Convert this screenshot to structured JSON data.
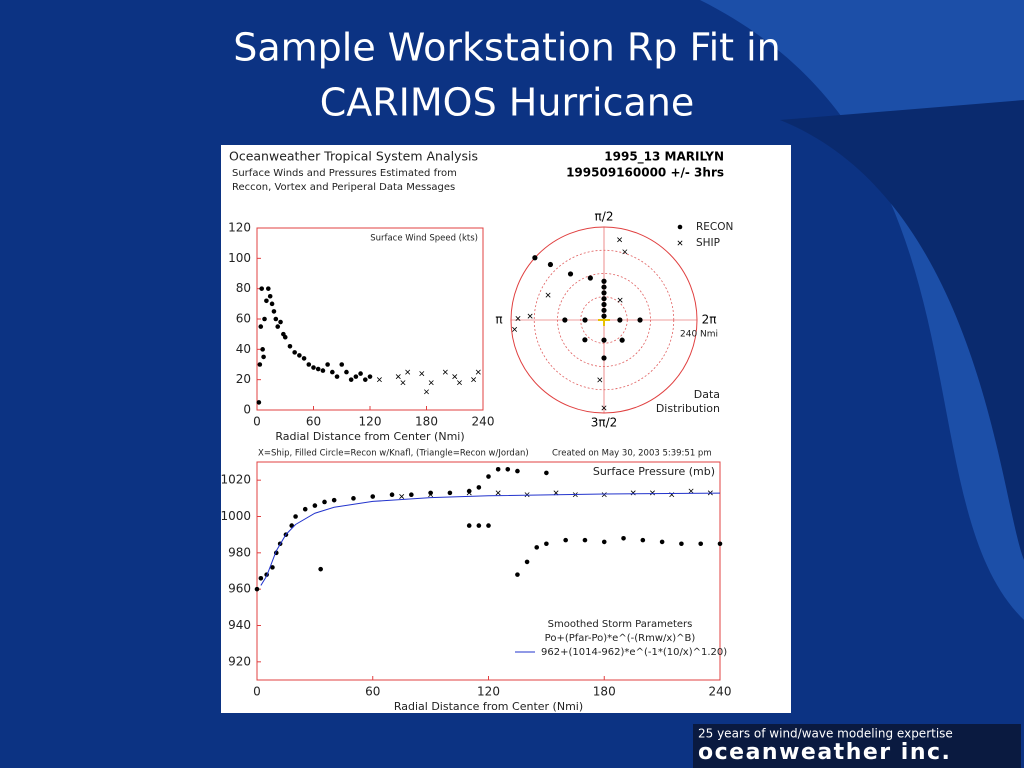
{
  "slide": {
    "title_lines": [
      "Sample Workstation Rp Fit in",
      "CARIMOS Hurricane"
    ],
    "footer": {
      "tagline": "25 years of wind/wave modeling expertise",
      "logo": "oceanweather inc."
    }
  },
  "panel": {
    "header": "Oceanweather Tropical System Analysis",
    "subheader_lines": [
      "Surface Winds and Pressures Estimated from",
      "Reccon, Vortex and Periperal Data Messages"
    ],
    "storm": "1995_13 MARILYN",
    "time": "199509160000 +/- 3hrs",
    "caption": "X=Ship, Filled Circle=Recon w/Knafl, (Triangle=Recon w/Jordan)",
    "created": "Created on May 30, 2003   5:39:51 pm"
  },
  "chart_data": [
    {
      "type": "scatter",
      "title": "Surface Wind Speed (kts)",
      "x_label": "Radial Distance from Center (Nmi)",
      "xlim": [
        0,
        240
      ],
      "xticks": [
        0,
        60,
        120,
        180,
        240
      ],
      "ylim": [
        0,
        120
      ],
      "yticks": [
        0,
        20,
        40,
        60,
        80,
        100,
        120
      ],
      "series": [
        {
          "color": "#000000",
          "marker": "dot",
          "x": [
            2,
            3,
            4,
            5,
            6,
            7,
            8,
            10,
            12,
            14,
            16,
            18,
            20,
            22,
            25,
            28,
            30,
            35,
            40,
            45,
            50,
            55,
            60,
            65,
            70,
            75,
            80,
            85,
            90,
            95,
            100,
            105,
            110,
            115,
            120
          ],
          "values": [
            5,
            30,
            55,
            80,
            40,
            35,
            60,
            72,
            80,
            75,
            70,
            65,
            60,
            55,
            58,
            50,
            48,
            42,
            38,
            36,
            34,
            30,
            28,
            27,
            26,
            30,
            25,
            22,
            30,
            25,
            20,
            22,
            24,
            20,
            22
          ]
        },
        {
          "color": "#000000",
          "marker": "x",
          "x": [
            130,
            150,
            155,
            160,
            175,
            180,
            185,
            200,
            210,
            215,
            230,
            235
          ],
          "values": [
            20,
            22,
            18,
            25,
            24,
            12,
            18,
            25,
            22,
            18,
            20,
            25
          ]
        }
      ]
    },
    {
      "type": "polar",
      "legend": "top-right",
      "rlim": [
        0,
        240
      ],
      "rticks": [
        {
          "value": 240,
          "label": "240 Nmi"
        }
      ],
      "thetaticks": [
        {
          "value": 90,
          "label": "π/2"
        },
        {
          "value": 180,
          "label": "π"
        },
        {
          "value": 360,
          "label": "2π"
        },
        {
          "value": 270,
          "label": "3π/2"
        }
      ],
      "annotation_lines": [
        "Data",
        "Distribution"
      ],
      "series": [
        {
          "name": "RECON",
          "color": "#000000",
          "marker": "dot",
          "theta": [
            90,
            90,
            90,
            90,
            90,
            90,
            90,
            108,
            126,
            134,
            138,
            180,
            180,
            270,
            270,
            226,
            360,
            360,
            312
          ],
          "values": [
            10,
            25,
            40,
            55,
            70,
            85,
            100,
            114,
            147,
            199,
            240,
            49,
            101,
            52,
            98,
            71,
            41,
            93,
            70
          ]
        },
        {
          "name": "SHIP",
          "color": "#000000",
          "marker": "x",
          "theta": [
            79,
            73,
            270,
            266,
            156,
            179,
            177,
            51,
            186
          ],
          "values": [
            211,
            184,
            227,
            155,
            158,
            222,
            191,
            66,
            232
          ]
        }
      ]
    },
    {
      "type": "scatter",
      "title": "Surface Pressure (mb)",
      "x_label": "Radial Distance from Center (Nmi)",
      "xlim": [
        0,
        240
      ],
      "xticks": [
        0,
        60,
        120,
        180,
        240
      ],
      "ylim": [
        910,
        1030
      ],
      "yticks": [
        920,
        940,
        960,
        980,
        1000,
        1020
      ],
      "annotation_lines": [
        "Smoothed Storm Parameters",
        "Po+(Pfar-Po)*e^(-(Rmw/x)^B)"
      ],
      "series": [
        {
          "color": "#000000",
          "marker": "dot",
          "x": [
            0,
            2,
            5,
            8,
            10,
            12,
            15,
            18,
            20,
            25,
            30,
            33,
            35,
            40,
            50,
            60,
            70,
            80,
            90,
            100,
            110,
            115,
            120,
            125,
            130,
            135,
            150,
            110,
            115,
            120,
            135,
            140,
            145,
            150,
            160,
            170,
            180,
            190,
            200,
            210,
            220,
            230,
            240
          ],
          "values": [
            960,
            966,
            968,
            972,
            980,
            985,
            990,
            995,
            1000,
            1004,
            1006,
            971,
            1008,
            1009,
            1010,
            1011,
            1012,
            1012,
            1013,
            1013,
            1014,
            1016,
            1022,
            1026,
            1026,
            1025,
            1024,
            995,
            995,
            995,
            968,
            975,
            983,
            985,
            987,
            987,
            986,
            988,
            987,
            986,
            985,
            985,
            985
          ]
        },
        {
          "color": "#000000",
          "marker": "x",
          "x": [
            75,
            90,
            110,
            125,
            140,
            155,
            165,
            180,
            195,
            205,
            215,
            225,
            235
          ],
          "values": [
            1011,
            1012,
            1013,
            1013,
            1012,
            1013,
            1012,
            1012,
            1013,
            1013,
            1012,
            1014,
            1013
          ]
        },
        {
          "name": "962+(1014-962)*e^(-1*(10/x)^1.20)",
          "color": "#2233cc",
          "marker": "line",
          "x": [
            2,
            5,
            10,
            15,
            20,
            30,
            40,
            60,
            90,
            120,
            180,
            240
          ],
          "values": [
            962.05,
            967.2,
            981.1,
            990.1,
            995.6,
            1001.8,
            1005.1,
            1008.3,
            1010.4,
            1011.4,
            1012.4,
            1012.9
          ]
        }
      ]
    }
  ]
}
